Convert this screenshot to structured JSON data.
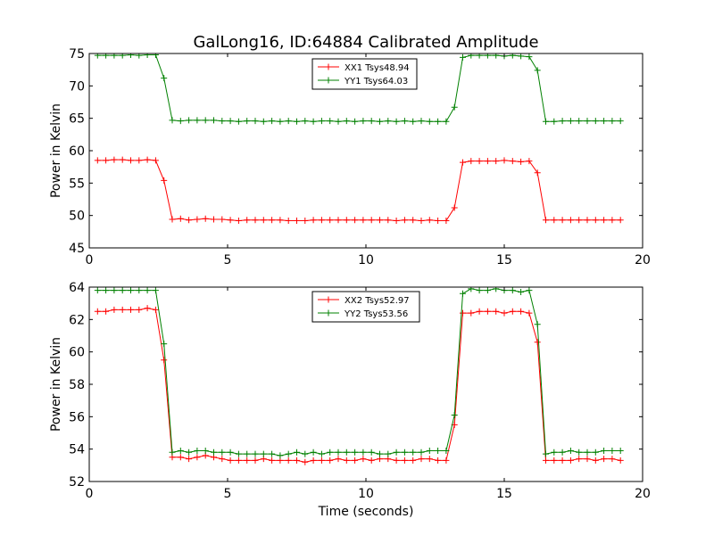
{
  "chart_data": {
    "type": "line",
    "title": "GalLong16, ID:64884 Calibrated Amplitude",
    "xlabel": "Time (seconds)",
    "grid": false,
    "panels": [
      {
        "ylabel": "Power in Kelvin",
        "xlim": [
          0,
          20
        ],
        "ylim": [
          45,
          75
        ],
        "xticks": [
          0,
          5,
          10,
          15,
          20
        ],
        "yticks": [
          45,
          50,
          55,
          60,
          65,
          70,
          75
        ],
        "show_xtick_labels": true,
        "show_xlabel": false,
        "legend_position": "top-center",
        "x": [
          0.3,
          0.6,
          0.9,
          1.2,
          1.5,
          1.8,
          2.1,
          2.4,
          2.7,
          3.0,
          3.3,
          3.6,
          3.9,
          4.2,
          4.5,
          4.8,
          5.1,
          5.4,
          5.7,
          6.0,
          6.3,
          6.6,
          6.9,
          7.2,
          7.5,
          7.8,
          8.1,
          8.4,
          8.7,
          9.0,
          9.3,
          9.6,
          9.9,
          10.2,
          10.5,
          10.8,
          11.1,
          11.4,
          11.7,
          12.0,
          12.3,
          12.6,
          12.9,
          13.2,
          13.5,
          13.8,
          14.1,
          14.4,
          14.7,
          15.0,
          15.3,
          15.6,
          15.9,
          16.2,
          16.5,
          16.8,
          17.1,
          17.4,
          17.7,
          18.0,
          18.3,
          18.6,
          18.9,
          19.2
        ],
        "series": [
          {
            "name": "XX1 Tsys48.94",
            "color": "#ff0000",
            "values": [
              58.5,
              58.5,
              58.6,
              58.6,
              58.5,
              58.5,
              58.6,
              58.5,
              55.4,
              49.4,
              49.5,
              49.3,
              49.4,
              49.5,
              49.4,
              49.4,
              49.3,
              49.2,
              49.3,
              49.3,
              49.3,
              49.3,
              49.3,
              49.2,
              49.2,
              49.2,
              49.3,
              49.3,
              49.3,
              49.3,
              49.3,
              49.3,
              49.3,
              49.3,
              49.3,
              49.3,
              49.2,
              49.3,
              49.3,
              49.2,
              49.3,
              49.2,
              49.2,
              51.2,
              58.2,
              58.4,
              58.4,
              58.4,
              58.4,
              58.5,
              58.4,
              58.3,
              58.4,
              56.6,
              49.3,
              49.3,
              49.3,
              49.3,
              49.3,
              49.3,
              49.3,
              49.3,
              49.3,
              49.3
            ]
          },
          {
            "name": "YY1 Tsys64.03",
            "color": "#008000",
            "values": [
              74.7,
              74.7,
              74.7,
              74.7,
              74.8,
              74.7,
              74.8,
              74.8,
              71.2,
              64.7,
              64.6,
              64.7,
              64.7,
              64.7,
              64.7,
              64.6,
              64.6,
              64.5,
              64.6,
              64.6,
              64.5,
              64.6,
              64.5,
              64.6,
              64.5,
              64.6,
              64.5,
              64.6,
              64.6,
              64.5,
              64.6,
              64.5,
              64.6,
              64.6,
              64.5,
              64.6,
              64.5,
              64.6,
              64.5,
              64.6,
              64.5,
              64.5,
              64.5,
              66.7,
              74.4,
              74.7,
              74.7,
              74.7,
              74.7,
              74.6,
              74.7,
              74.6,
              74.5,
              72.4,
              64.5,
              64.5,
              64.6,
              64.6,
              64.6,
              64.6,
              64.6,
              64.6,
              64.6,
              64.6
            ]
          }
        ]
      },
      {
        "ylabel": "Power in Kelvin",
        "xlim": [
          0,
          20
        ],
        "ylim": [
          52,
          64
        ],
        "xticks": [
          0,
          5,
          10,
          15,
          20
        ],
        "yticks": [
          52,
          54,
          56,
          58,
          60,
          62,
          64
        ],
        "show_xtick_labels": true,
        "show_xlabel": true,
        "legend_position": "top-center",
        "x": [
          0.3,
          0.6,
          0.9,
          1.2,
          1.5,
          1.8,
          2.1,
          2.4,
          2.7,
          3.0,
          3.3,
          3.6,
          3.9,
          4.2,
          4.5,
          4.8,
          5.1,
          5.4,
          5.7,
          6.0,
          6.3,
          6.6,
          6.9,
          7.2,
          7.5,
          7.8,
          8.1,
          8.4,
          8.7,
          9.0,
          9.3,
          9.6,
          9.9,
          10.2,
          10.5,
          10.8,
          11.1,
          11.4,
          11.7,
          12.0,
          12.3,
          12.6,
          12.9,
          13.2,
          13.5,
          13.8,
          14.1,
          14.4,
          14.7,
          15.0,
          15.3,
          15.6,
          15.9,
          16.2,
          16.5,
          16.8,
          17.1,
          17.4,
          17.7,
          18.0,
          18.3,
          18.6,
          18.9,
          19.2
        ],
        "series": [
          {
            "name": "XX2 Tsys52.97",
            "color": "#ff0000",
            "values": [
              62.5,
              62.5,
              62.6,
              62.6,
              62.6,
              62.6,
              62.7,
              62.6,
              59.5,
              53.5,
              53.5,
              53.4,
              53.5,
              53.6,
              53.5,
              53.4,
              53.3,
              53.3,
              53.3,
              53.3,
              53.4,
              53.3,
              53.3,
              53.3,
              53.3,
              53.2,
              53.3,
              53.3,
              53.3,
              53.4,
              53.3,
              53.3,
              53.4,
              53.3,
              53.4,
              53.4,
              53.3,
              53.3,
              53.3,
              53.4,
              53.4,
              53.3,
              53.3,
              55.5,
              62.4,
              62.4,
              62.5,
              62.5,
              62.5,
              62.4,
              62.5,
              62.5,
              62.4,
              60.6,
              53.3,
              53.3,
              53.3,
              53.3,
              53.4,
              53.4,
              53.3,
              53.4,
              53.4,
              53.3
            ]
          },
          {
            "name": "YY2 Tsys53.56",
            "color": "#008000",
            "values": [
              63.8,
              63.8,
              63.8,
              63.8,
              63.8,
              63.8,
              63.8,
              63.8,
              60.5,
              53.8,
              53.9,
              53.8,
              53.9,
              53.9,
              53.8,
              53.8,
              53.8,
              53.7,
              53.7,
              53.7,
              53.7,
              53.7,
              53.6,
              53.7,
              53.8,
              53.7,
              53.8,
              53.7,
              53.8,
              53.8,
              53.8,
              53.8,
              53.8,
              53.8,
              53.7,
              53.7,
              53.8,
              53.8,
              53.8,
              53.8,
              53.9,
              53.9,
              53.9,
              56.1,
              63.6,
              63.9,
              63.8,
              63.8,
              63.9,
              63.8,
              63.8,
              63.7,
              63.8,
              61.7,
              53.7,
              53.8,
              53.8,
              53.9,
              53.8,
              53.8,
              53.8,
              53.9,
              53.9,
              53.9
            ]
          }
        ]
      }
    ]
  }
}
